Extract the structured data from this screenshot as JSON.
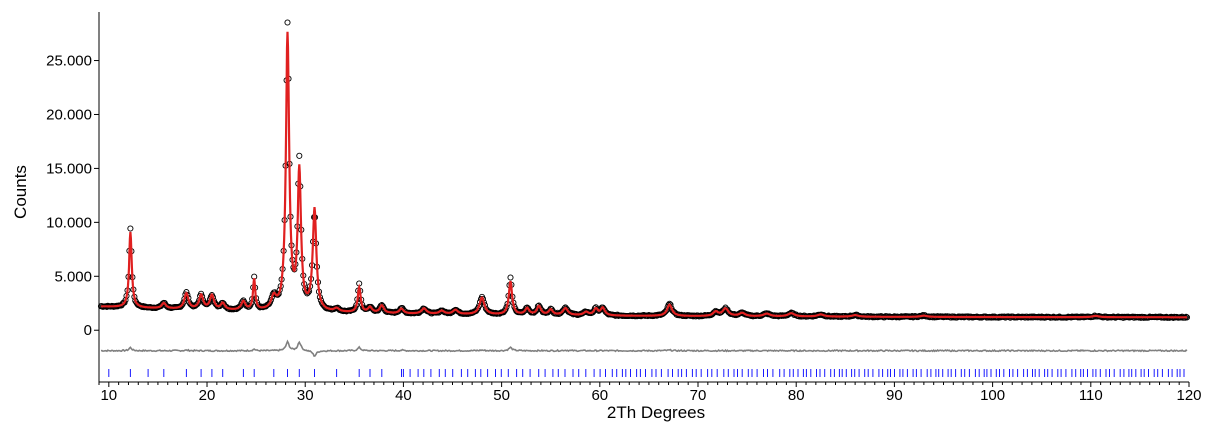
{
  "chart_data": {
    "type": "line",
    "title": "",
    "xlabel": "2Th Degrees",
    "ylabel": "Counts",
    "xlim": [
      9,
      120
    ],
    "ylim": [
      -4800,
      29500
    ],
    "x_ticks": [
      10,
      20,
      30,
      40,
      50,
      60,
      70,
      80,
      90,
      100,
      110,
      120
    ],
    "x_tick_labels": [
      "10",
      "20",
      "30",
      "40",
      "50",
      "60",
      "70",
      "80",
      "90",
      "100",
      "110",
      "120"
    ],
    "y_ticks": [
      0,
      5000,
      10000,
      15000,
      20000,
      25000
    ],
    "y_tick_labels": [
      "0",
      "5.000",
      "10.000",
      "15.000",
      "20.000",
      "25.000"
    ],
    "grid": false,
    "legend": "none",
    "background_start": 2200,
    "background_end": 1200,
    "difference_offset": -1900,
    "peaks": [
      {
        "x": 12.2,
        "obs": 7300,
        "calc": 7000,
        "w": 0.16
      },
      {
        "x": 15.6,
        "obs": 500,
        "calc": 500,
        "w": 0.25
      },
      {
        "x": 17.9,
        "obs": 1500,
        "calc": 1450,
        "w": 0.25
      },
      {
        "x": 19.4,
        "obs": 1300,
        "calc": 1300,
        "w": 0.25
      },
      {
        "x": 20.5,
        "obs": 1300,
        "calc": 1300,
        "w": 0.25
      },
      {
        "x": 21.6,
        "obs": 600,
        "calc": 600,
        "w": 0.25
      },
      {
        "x": 23.7,
        "obs": 800,
        "calc": 800,
        "w": 0.25
      },
      {
        "x": 24.8,
        "obs": 3000,
        "calc": 2850,
        "w": 0.14
      },
      {
        "x": 26.8,
        "obs": 1100,
        "calc": 1100,
        "w": 0.3
      },
      {
        "x": 28.2,
        "obs": 26300,
        "calc": 25500,
        "w": 0.2
      },
      {
        "x": 29.4,
        "obs": 13600,
        "calc": 12800,
        "w": 0.2
      },
      {
        "x": 30.95,
        "obs": 8900,
        "calc": 9400,
        "w": 0.22
      },
      {
        "x": 33.2,
        "obs": 300,
        "calc": 300,
        "w": 0.3
      },
      {
        "x": 35.5,
        "obs": 2600,
        "calc": 2300,
        "w": 0.18
      },
      {
        "x": 36.6,
        "obs": 500,
        "calc": 500,
        "w": 0.25
      },
      {
        "x": 37.8,
        "obs": 700,
        "calc": 700,
        "w": 0.25
      },
      {
        "x": 39.8,
        "obs": 500,
        "calc": 450,
        "w": 0.25
      },
      {
        "x": 42.1,
        "obs": 500,
        "calc": 500,
        "w": 0.3
      },
      {
        "x": 43.9,
        "obs": 300,
        "calc": 300,
        "w": 0.3
      },
      {
        "x": 45.3,
        "obs": 400,
        "calc": 400,
        "w": 0.3
      },
      {
        "x": 48.0,
        "obs": 1600,
        "calc": 1550,
        "w": 0.3
      },
      {
        "x": 50.9,
        "obs": 3400,
        "calc": 3100,
        "w": 0.2
      },
      {
        "x": 52.6,
        "obs": 600,
        "calc": 600,
        "w": 0.25
      },
      {
        "x": 53.8,
        "obs": 800,
        "calc": 800,
        "w": 0.25
      },
      {
        "x": 55.0,
        "obs": 500,
        "calc": 500,
        "w": 0.25
      },
      {
        "x": 56.5,
        "obs": 700,
        "calc": 650,
        "w": 0.3
      },
      {
        "x": 58.6,
        "obs": 300,
        "calc": 300,
        "w": 0.3
      },
      {
        "x": 59.6,
        "obs": 600,
        "calc": 600,
        "w": 0.25
      },
      {
        "x": 60.3,
        "obs": 700,
        "calc": 700,
        "w": 0.25
      },
      {
        "x": 67.1,
        "obs": 1100,
        "calc": 1050,
        "w": 0.3
      },
      {
        "x": 71.8,
        "obs": 400,
        "calc": 400,
        "w": 0.3
      },
      {
        "x": 72.8,
        "obs": 700,
        "calc": 700,
        "w": 0.35
      },
      {
        "x": 74.5,
        "obs": 300,
        "calc": 300,
        "w": 0.35
      },
      {
        "x": 77.0,
        "obs": 250,
        "calc": 250,
        "w": 0.4
      },
      {
        "x": 79.5,
        "obs": 300,
        "calc": 300,
        "w": 0.4
      },
      {
        "x": 82.5,
        "obs": 200,
        "calc": 200,
        "w": 0.4
      },
      {
        "x": 86.0,
        "obs": 150,
        "calc": 150,
        "w": 0.4
      },
      {
        "x": 93.0,
        "obs": 120,
        "calc": 120,
        "w": 0.4
      },
      {
        "x": 110.5,
        "obs": 120,
        "calc": 120,
        "w": 0.4
      }
    ],
    "series": [
      {
        "name": "Observed",
        "marker": "open-circle",
        "color": "#000000"
      },
      {
        "name": "Calculated",
        "marker": "line",
        "color": "#e02020"
      },
      {
        "name": "Difference",
        "marker": "line",
        "color": "#808080"
      },
      {
        "name": "Reflection positions",
        "marker": "tick",
        "color": "#1a1aff"
      }
    ]
  }
}
